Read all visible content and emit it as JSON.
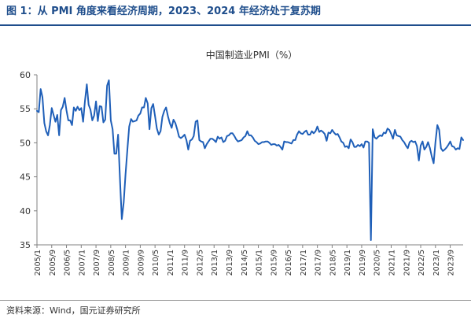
{
  "figure": {
    "title": "图 1：从 PMI 角度来看经济周期，2023、2024 年经济处于复苏期",
    "source": "资料来源：Wind，国元证券研究所"
  },
  "colors": {
    "title": "#1f4e8c",
    "series": "#1f5fb8",
    "axis": "#808080",
    "text": "#333333"
  },
  "chart_data": {
    "type": "line",
    "title": "中国制造业PMI（%）",
    "xlabel": "",
    "ylabel": "",
    "ylim": [
      35,
      60
    ],
    "yticks": [
      35,
      40,
      45,
      50,
      55,
      60
    ],
    "grid": false,
    "legend": "none",
    "x_tick_labels": [
      "2005/1",
      "2005/9",
      "2006/5",
      "2007/1",
      "2007/9",
      "2008/5",
      "2009/1",
      "2009/9",
      "2010/5",
      "2011/1",
      "2011/9",
      "2012/5",
      "2013/1",
      "2013/9",
      "2014/5",
      "2015/1",
      "2015/9",
      "2016/5",
      "2017/1",
      "2017/9",
      "2018/5",
      "2019/1",
      "2019/9",
      "2020/5",
      "2021/1",
      "2021/9",
      "2022/5",
      "2023/1",
      "2023/9"
    ],
    "series": [
      {
        "name": "中国制造业PMI",
        "points": [
          [
            "2005/1",
            54.7
          ],
          [
            "2005/2",
            54.5
          ],
          [
            "2005/3",
            57.9
          ],
          [
            "2005/4",
            56.7
          ],
          [
            "2005/5",
            52.9
          ],
          [
            "2005/6",
            51.7
          ],
          [
            "2005/7",
            51.1
          ],
          [
            "2005/8",
            52.6
          ],
          [
            "2005/9",
            55.1
          ],
          [
            "2005/10",
            54.1
          ],
          [
            "2005/11",
            53.1
          ],
          [
            "2005/12",
            54.1
          ],
          [
            "2006/1",
            51.1
          ],
          [
            "2006/2",
            54.8
          ],
          [
            "2006/3",
            55.3
          ],
          [
            "2006/4",
            56.6
          ],
          [
            "2006/5",
            54.8
          ],
          [
            "2006/6",
            53.3
          ],
          [
            "2006/7",
            53.3
          ],
          [
            "2006/8",
            52.6
          ],
          [
            "2006/9",
            55.2
          ],
          [
            "2006/10",
            54.7
          ],
          [
            "2006/11",
            55.3
          ],
          [
            "2006/12",
            54.8
          ],
          [
            "2007/1",
            55.1
          ],
          [
            "2007/2",
            53.1
          ],
          [
            "2007/3",
            56.1
          ],
          [
            "2007/4",
            58.6
          ],
          [
            "2007/5",
            55.6
          ],
          [
            "2007/6",
            54.9
          ],
          [
            "2007/7",
            53.3
          ],
          [
            "2007/8",
            54.0
          ],
          [
            "2007/9",
            56.1
          ],
          [
            "2007/10",
            53.2
          ],
          [
            "2007/11",
            55.4
          ],
          [
            "2007/12",
            55.3
          ],
          [
            "2008/1",
            53.0
          ],
          [
            "2008/2",
            53.4
          ],
          [
            "2008/3",
            58.4
          ],
          [
            "2008/4",
            59.2
          ],
          [
            "2008/5",
            53.3
          ],
          [
            "2008/6",
            52.0
          ],
          [
            "2008/7",
            48.4
          ],
          [
            "2008/8",
            48.4
          ],
          [
            "2008/9",
            51.2
          ],
          [
            "2008/10",
            44.6
          ],
          [
            "2008/11",
            38.8
          ],
          [
            "2008/12",
            41.2
          ],
          [
            "2009/1",
            45.3
          ],
          [
            "2009/2",
            49.0
          ],
          [
            "2009/3",
            52.4
          ],
          [
            "2009/4",
            53.5
          ],
          [
            "2009/5",
            53.1
          ],
          [
            "2009/6",
            53.2
          ],
          [
            "2009/7",
            53.3
          ],
          [
            "2009/8",
            54.0
          ],
          [
            "2009/9",
            54.3
          ],
          [
            "2009/10",
            55.2
          ],
          [
            "2009/11",
            55.2
          ],
          [
            "2009/12",
            56.6
          ],
          [
            "2010/1",
            55.8
          ],
          [
            "2010/2",
            52.0
          ],
          [
            "2010/3",
            55.1
          ],
          [
            "2010/4",
            55.7
          ],
          [
            "2010/5",
            53.9
          ],
          [
            "2010/6",
            52.1
          ],
          [
            "2010/7",
            51.2
          ],
          [
            "2010/8",
            51.7
          ],
          [
            "2010/9",
            53.8
          ],
          [
            "2010/10",
            54.7
          ],
          [
            "2010/11",
            55.2
          ],
          [
            "2010/12",
            53.9
          ],
          [
            "2011/1",
            52.9
          ],
          [
            "2011/2",
            52.2
          ],
          [
            "2011/3",
            53.4
          ],
          [
            "2011/4",
            52.9
          ],
          [
            "2011/5",
            52.0
          ],
          [
            "2011/6",
            50.9
          ],
          [
            "2011/7",
            50.7
          ],
          [
            "2011/8",
            50.9
          ],
          [
            "2011/9",
            51.2
          ],
          [
            "2011/10",
            50.4
          ],
          [
            "2011/11",
            49.0
          ],
          [
            "2011/12",
            50.3
          ],
          [
            "2012/1",
            50.5
          ],
          [
            "2012/2",
            51.0
          ],
          [
            "2012/3",
            53.1
          ],
          [
            "2012/4",
            53.3
          ],
          [
            "2012/5",
            50.4
          ],
          [
            "2012/6",
            50.2
          ],
          [
            "2012/7",
            50.1
          ],
          [
            "2012/8",
            49.2
          ],
          [
            "2012/9",
            49.8
          ],
          [
            "2012/10",
            50.2
          ],
          [
            "2012/11",
            50.6
          ],
          [
            "2012/12",
            50.6
          ],
          [
            "2013/1",
            50.4
          ],
          [
            "2013/2",
            50.1
          ],
          [
            "2013/3",
            50.9
          ],
          [
            "2013/4",
            50.6
          ],
          [
            "2013/5",
            50.8
          ],
          [
            "2013/6",
            50.1
          ],
          [
            "2013/7",
            50.3
          ],
          [
            "2013/8",
            51.0
          ],
          [
            "2013/9",
            51.1
          ],
          [
            "2013/10",
            51.4
          ],
          [
            "2013/11",
            51.4
          ],
          [
            "2013/12",
            51.0
          ],
          [
            "2014/1",
            50.5
          ],
          [
            "2014/2",
            50.2
          ],
          [
            "2014/3",
            50.3
          ],
          [
            "2014/4",
            50.4
          ],
          [
            "2014/5",
            50.8
          ],
          [
            "2014/6",
            51.0
          ],
          [
            "2014/7",
            51.7
          ],
          [
            "2014/8",
            51.1
          ],
          [
            "2014/9",
            51.1
          ],
          [
            "2014/10",
            50.8
          ],
          [
            "2014/11",
            50.3
          ],
          [
            "2014/12",
            50.1
          ],
          [
            "2015/1",
            49.8
          ],
          [
            "2015/2",
            49.9
          ],
          [
            "2015/3",
            50.1
          ],
          [
            "2015/4",
            50.1
          ],
          [
            "2015/5",
            50.2
          ],
          [
            "2015/6",
            50.2
          ],
          [
            "2015/7",
            50.0
          ],
          [
            "2015/8",
            49.7
          ],
          [
            "2015/9",
            49.8
          ],
          [
            "2015/10",
            49.8
          ],
          [
            "2015/11",
            49.6
          ],
          [
            "2015/12",
            49.7
          ],
          [
            "2016/1",
            49.4
          ],
          [
            "2016/2",
            49.0
          ],
          [
            "2016/3",
            50.2
          ],
          [
            "2016/4",
            50.1
          ],
          [
            "2016/5",
            50.1
          ],
          [
            "2016/6",
            50.0
          ],
          [
            "2016/7",
            49.9
          ],
          [
            "2016/8",
            50.4
          ],
          [
            "2016/9",
            50.4
          ],
          [
            "2016/10",
            51.2
          ],
          [
            "2016/11",
            51.7
          ],
          [
            "2016/12",
            51.4
          ],
          [
            "2017/1",
            51.3
          ],
          [
            "2017/2",
            51.6
          ],
          [
            "2017/3",
            51.8
          ],
          [
            "2017/4",
            51.2
          ],
          [
            "2017/5",
            51.2
          ],
          [
            "2017/6",
            51.7
          ],
          [
            "2017/7",
            51.4
          ],
          [
            "2017/8",
            51.7
          ],
          [
            "2017/9",
            52.4
          ],
          [
            "2017/10",
            51.6
          ],
          [
            "2017/11",
            51.8
          ],
          [
            "2017/12",
            51.6
          ],
          [
            "2018/1",
            51.3
          ],
          [
            "2018/2",
            50.3
          ],
          [
            "2018/3",
            51.5
          ],
          [
            "2018/4",
            51.4
          ],
          [
            "2018/5",
            51.9
          ],
          [
            "2018/6",
            51.5
          ],
          [
            "2018/7",
            51.2
          ],
          [
            "2018/8",
            51.3
          ],
          [
            "2018/9",
            50.8
          ],
          [
            "2018/10",
            50.2
          ],
          [
            "2018/11",
            50.0
          ],
          [
            "2018/12",
            49.4
          ],
          [
            "2019/1",
            49.5
          ],
          [
            "2019/2",
            49.2
          ],
          [
            "2019/3",
            50.5
          ],
          [
            "2019/4",
            50.1
          ],
          [
            "2019/5",
            49.4
          ],
          [
            "2019/6",
            49.4
          ],
          [
            "2019/7",
            49.7
          ],
          [
            "2019/8",
            49.5
          ],
          [
            "2019/9",
            49.8
          ],
          [
            "2019/10",
            49.3
          ],
          [
            "2019/11",
            50.2
          ],
          [
            "2019/12",
            50.2
          ],
          [
            "2020/1",
            50.0
          ],
          [
            "2020/2",
            35.7
          ],
          [
            "2020/3",
            52.0
          ],
          [
            "2020/4",
            50.8
          ],
          [
            "2020/5",
            50.6
          ],
          [
            "2020/6",
            50.9
          ],
          [
            "2020/7",
            51.1
          ],
          [
            "2020/8",
            51.0
          ],
          [
            "2020/9",
            51.5
          ],
          [
            "2020/10",
            51.4
          ],
          [
            "2020/11",
            52.1
          ],
          [
            "2020/12",
            51.9
          ],
          [
            "2021/1",
            51.3
          ],
          [
            "2021/2",
            50.6
          ],
          [
            "2021/3",
            51.9
          ],
          [
            "2021/4",
            51.1
          ],
          [
            "2021/5",
            51.0
          ],
          [
            "2021/6",
            50.9
          ],
          [
            "2021/7",
            50.4
          ],
          [
            "2021/8",
            50.1
          ],
          [
            "2021/9",
            49.6
          ],
          [
            "2021/10",
            49.2
          ],
          [
            "2021/11",
            50.1
          ],
          [
            "2021/12",
            50.3
          ],
          [
            "2022/1",
            50.1
          ],
          [
            "2022/2",
            50.2
          ],
          [
            "2022/3",
            49.5
          ],
          [
            "2022/4",
            47.4
          ],
          [
            "2022/5",
            49.6
          ],
          [
            "2022/6",
            50.2
          ],
          [
            "2022/7",
            49.0
          ],
          [
            "2022/8",
            49.4
          ],
          [
            "2022/9",
            50.1
          ],
          [
            "2022/10",
            49.2
          ],
          [
            "2022/11",
            48.0
          ],
          [
            "2022/12",
            47.0
          ],
          [
            "2023/1",
            50.1
          ],
          [
            "2023/2",
            52.6
          ],
          [
            "2023/3",
            51.9
          ],
          [
            "2023/4",
            49.2
          ],
          [
            "2023/5",
            48.8
          ],
          [
            "2023/6",
            49.0
          ],
          [
            "2023/7",
            49.3
          ],
          [
            "2023/8",
            49.7
          ],
          [
            "2023/9",
            50.2
          ],
          [
            "2023/10",
            49.5
          ],
          [
            "2023/11",
            49.4
          ],
          [
            "2023/12",
            49.0
          ],
          [
            "2024/1",
            49.2
          ],
          [
            "2024/2",
            49.1
          ],
          [
            "2024/3",
            50.8
          ],
          [
            "2024/4",
            50.4
          ]
        ]
      }
    ]
  }
}
